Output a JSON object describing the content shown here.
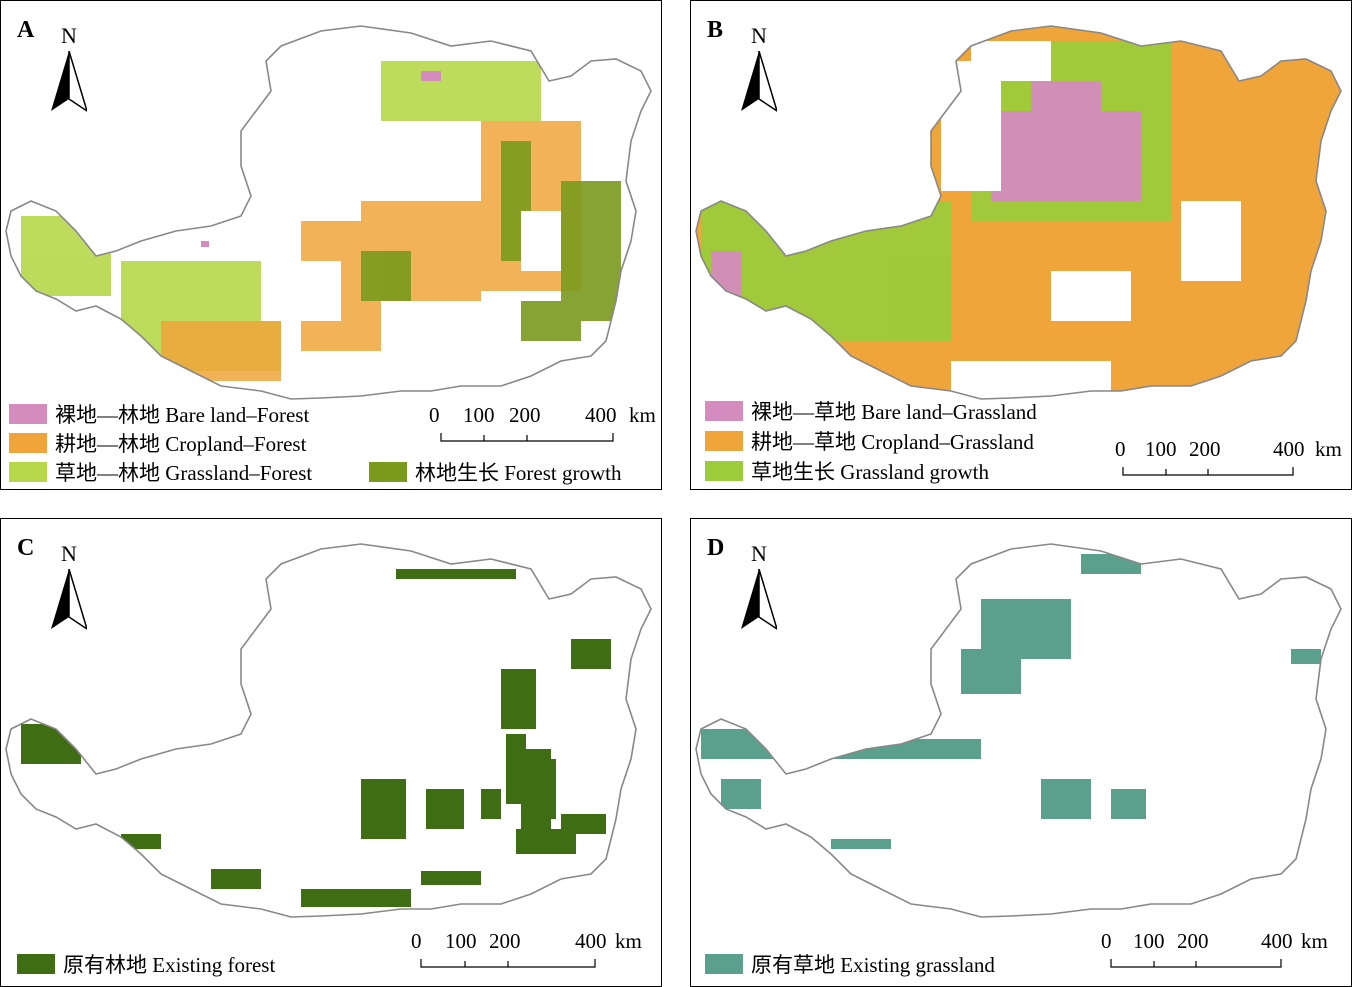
{
  "panels": [
    {
      "label": "A",
      "north": "N",
      "legend": [
        {
          "text": "裸地—林地 Bare land–Forest",
          "color": "#d48bbd"
        },
        {
          "text": "耕地—林地 Cropland–Forest",
          "color": "#f0a53a"
        },
        {
          "text": "草地—林地 Grassland–Forest",
          "color": "#b6d84a"
        },
        {
          "text": "林地生长 Forest growth",
          "color": "#7a9a1e"
        }
      ],
      "scale": {
        "ticks": [
          "0",
          "100",
          "200",
          "400"
        ],
        "unit": "km"
      }
    },
    {
      "label": "B",
      "north": "N",
      "legend": [
        {
          "text": "裸地—草地 Bare land–Grassland",
          "color": "#d48bbd"
        },
        {
          "text": "耕地—草地 Cropland–Grassland",
          "color": "#f0a53a"
        },
        {
          "text": "草地生长 Grassland growth",
          "color": "#9ccb3b"
        }
      ],
      "scale": {
        "ticks": [
          "0",
          "100",
          "200",
          "400"
        ],
        "unit": "km"
      }
    },
    {
      "label": "C",
      "north": "N",
      "legend": [
        {
          "text": "原有林地 Existing forest",
          "color": "#3f6d14"
        }
      ],
      "scale": {
        "ticks": [
          "0",
          "100",
          "200",
          "400"
        ],
        "unit": "km"
      }
    },
    {
      "label": "D",
      "north": "N",
      "legend": [
        {
          "text": "原有草地 Existing grassland",
          "color": "#5aa08c"
        }
      ],
      "scale": {
        "ticks": [
          "0",
          "100",
          "200",
          "400"
        ],
        "unit": "km"
      }
    }
  ]
}
